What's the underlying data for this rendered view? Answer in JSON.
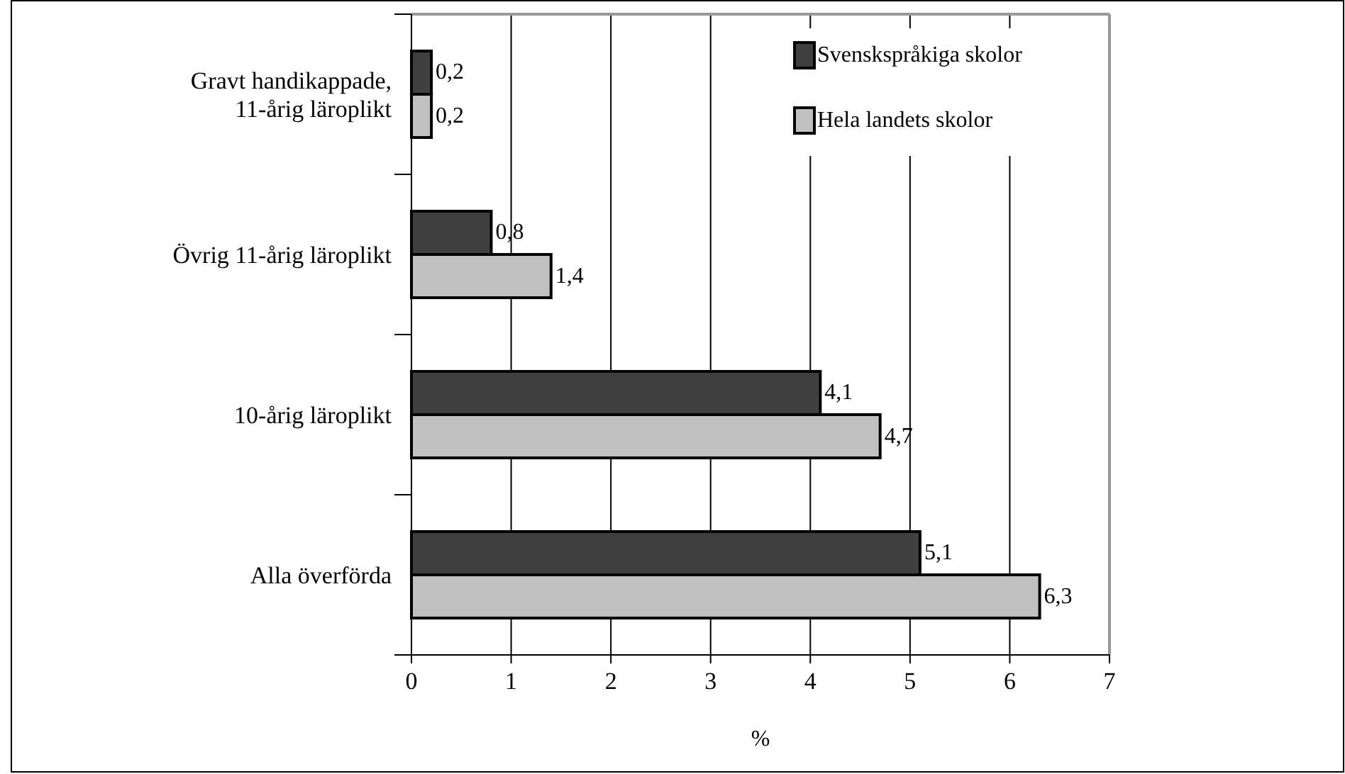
{
  "chart_data": {
    "type": "bar",
    "orientation": "horizontal",
    "xlabel": "%",
    "categories": [
      "Gravt handikappade, 11-årig läroplikt",
      "Övrig 11-årig läroplikt",
      "10-årig läroplikt",
      "Alla överförda"
    ],
    "series": [
      {
        "name": "Svenskspråkiga skolor",
        "color": "#404040",
        "values": [
          0.2,
          0.8,
          4.1,
          5.1
        ],
        "value_labels": [
          "0,2",
          "0,8",
          "4,1",
          "5,1"
        ]
      },
      {
        "name": "Hela landets skolor",
        "color": "#c0c0c0",
        "values": [
          0.2,
          1.4,
          4.7,
          6.3
        ],
        "value_labels": [
          "0,2",
          "1,4",
          "4,7",
          "6,3"
        ]
      }
    ],
    "xlim": [
      0,
      7
    ],
    "xticks": [
      0,
      1,
      2,
      3,
      4,
      5,
      6,
      7
    ],
    "grid": "x",
    "legend": "top right"
  }
}
